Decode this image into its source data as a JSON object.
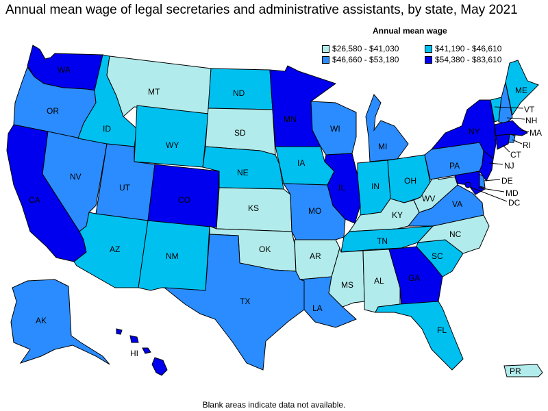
{
  "title": "Annual mean wage of legal secretaries and administrative assistants, by state, May 2021",
  "legend": {
    "title": "Annual mean wage",
    "items": [
      {
        "label": "$26,580 - $41,030",
        "color": "#b2ebeb"
      },
      {
        "label": "$41,190 - $46,610",
        "color": "#00c0f0"
      },
      {
        "label": "$46,660 - $53,180",
        "color": "#2a8cff"
      },
      {
        "label": "$54,380 - $83,610",
        "color": "#0000ee"
      }
    ]
  },
  "note": "Blank areas indicate data not available.",
  "states": [
    {
      "abbr": "WA",
      "bin": 3
    },
    {
      "abbr": "OR",
      "bin": 2
    },
    {
      "abbr": "CA",
      "bin": 3
    },
    {
      "abbr": "NV",
      "bin": 2
    },
    {
      "abbr": "ID",
      "bin": 1
    },
    {
      "abbr": "MT",
      "bin": 0
    },
    {
      "abbr": "WY",
      "bin": 1
    },
    {
      "abbr": "UT",
      "bin": 2
    },
    {
      "abbr": "AZ",
      "bin": 1
    },
    {
      "abbr": "NM",
      "bin": 1
    },
    {
      "abbr": "CO",
      "bin": 3
    },
    {
      "abbr": "ND",
      "bin": 1
    },
    {
      "abbr": "SD",
      "bin": 0
    },
    {
      "abbr": "NE",
      "bin": 1
    },
    {
      "abbr": "KS",
      "bin": 0
    },
    {
      "abbr": "OK",
      "bin": 0
    },
    {
      "abbr": "TX",
      "bin": 2
    },
    {
      "abbr": "MN",
      "bin": 3
    },
    {
      "abbr": "IA",
      "bin": 1
    },
    {
      "abbr": "MO",
      "bin": 2
    },
    {
      "abbr": "AR",
      "bin": 0
    },
    {
      "abbr": "LA",
      "bin": 2
    },
    {
      "abbr": "WI",
      "bin": 2
    },
    {
      "abbr": "IL",
      "bin": 3
    },
    {
      "abbr": "MI",
      "bin": 2
    },
    {
      "abbr": "IN",
      "bin": 1
    },
    {
      "abbr": "OH",
      "bin": 1
    },
    {
      "abbr": "KY",
      "bin": 0
    },
    {
      "abbr": "TN",
      "bin": 1
    },
    {
      "abbr": "MS",
      "bin": 0
    },
    {
      "abbr": "AL",
      "bin": 0
    },
    {
      "abbr": "GA",
      "bin": 3
    },
    {
      "abbr": "FL",
      "bin": 1
    },
    {
      "abbr": "SC",
      "bin": 1
    },
    {
      "abbr": "NC",
      "bin": 0
    },
    {
      "abbr": "VA",
      "bin": 2
    },
    {
      "abbr": "WV",
      "bin": 0
    },
    {
      "abbr": "PA",
      "bin": 2
    },
    {
      "abbr": "NY",
      "bin": 3
    },
    {
      "abbr": "VT",
      "bin": 1
    },
    {
      "abbr": "NH",
      "bin": 2
    },
    {
      "abbr": "ME",
      "bin": 1
    },
    {
      "abbr": "MA",
      "bin": 3
    },
    {
      "abbr": "RI",
      "bin": 2
    },
    {
      "abbr": "CT",
      "bin": 3
    },
    {
      "abbr": "NJ",
      "bin": 3
    },
    {
      "abbr": "DE",
      "bin": 2
    },
    {
      "abbr": "MD",
      "bin": 3
    },
    {
      "abbr": "DC",
      "bin": 3
    },
    {
      "abbr": "AK",
      "bin": 2
    },
    {
      "abbr": "HI",
      "bin": 3
    },
    {
      "abbr": "PR",
      "bin": 0
    }
  ]
}
